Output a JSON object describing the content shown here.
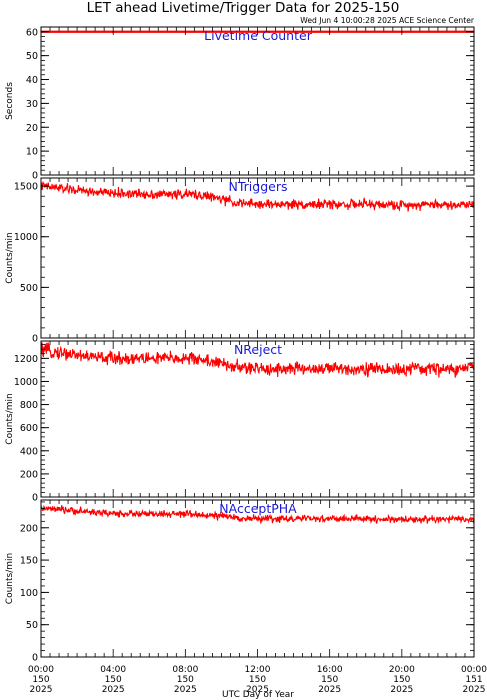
{
  "title": "LET ahead Livetime/Trigger Data for 2025-150",
  "subtitle": "Wed Jun  4 10:00:28 2025 ACE Science Center",
  "xlabel": "UTC Day of Year",
  "colors": {
    "data": "#ff0000",
    "panel_label": "#1a1ad6",
    "axes": "#000000"
  },
  "x_ticks": [
    {
      "hour": 0,
      "time": "00:00",
      "doy": "150",
      "year": "2025"
    },
    {
      "hour": 4,
      "time": "04:00",
      "doy": "150",
      "year": "2025"
    },
    {
      "hour": 8,
      "time": "08:00",
      "doy": "150",
      "year": "2025"
    },
    {
      "hour": 12,
      "time": "12:00",
      "doy": "150",
      "year": "2025"
    },
    {
      "hour": 16,
      "time": "16:00",
      "doy": "150",
      "year": "2025"
    },
    {
      "hour": 20,
      "time": "20:00",
      "doy": "150",
      "year": "2025"
    },
    {
      "hour": 24,
      "time": "00:00",
      "doy": "151",
      "year": "2025"
    }
  ],
  "chart_data": [
    {
      "type": "line",
      "label": "Livetime Counter",
      "ylabel": "Seconds",
      "ylim": [
        0,
        62
      ],
      "yticks": [
        0,
        10,
        20,
        30,
        40,
        50,
        60
      ],
      "xlim": [
        0,
        24
      ],
      "series": [
        {
          "x": [
            0,
            24
          ],
          "values": [
            60,
            60
          ]
        }
      ]
    },
    {
      "type": "line",
      "label": "NTriggers",
      "ylabel": "Counts/min",
      "ylim": [
        0,
        1580
      ],
      "yticks": [
        0,
        500,
        1000,
        1500
      ],
      "xlim": [
        0,
        24
      ],
      "series": [
        {
          "x": [
            0,
            1,
            2,
            3,
            4,
            5,
            6,
            7,
            8,
            9,
            10,
            11,
            12,
            13,
            14,
            15,
            16,
            17,
            18,
            19,
            20,
            21,
            22,
            23,
            24
          ],
          "values": [
            1500,
            1480,
            1460,
            1440,
            1430,
            1425,
            1420,
            1420,
            1420,
            1410,
            1370,
            1330,
            1320,
            1320,
            1320,
            1320,
            1320,
            1320,
            1320,
            1315,
            1310,
            1320,
            1320,
            1310,
            1330
          ],
          "spread": 70
        }
      ]
    },
    {
      "type": "line",
      "label": "NReject",
      "ylabel": "Counts/min",
      "ylim": [
        0,
        1350
      ],
      "yticks": [
        0,
        200,
        400,
        600,
        800,
        1000,
        1200
      ],
      "xlim": [
        0,
        24
      ],
      "series": [
        {
          "x": [
            0,
            1,
            2,
            3,
            4,
            5,
            6,
            7,
            8,
            9,
            10,
            11,
            12,
            13,
            14,
            15,
            16,
            17,
            18,
            19,
            20,
            21,
            22,
            23,
            24
          ],
          "values": [
            1270,
            1250,
            1230,
            1210,
            1200,
            1200,
            1200,
            1200,
            1200,
            1190,
            1150,
            1120,
            1110,
            1110,
            1110,
            1110,
            1110,
            1110,
            1110,
            1105,
            1100,
            1110,
            1110,
            1100,
            1130
          ],
          "spread": 85
        }
      ]
    },
    {
      "type": "line",
      "label": "NAcceptPHA",
      "ylabel": "Counts/min",
      "ylim": [
        0,
        243
      ],
      "yticks": [
        0,
        50,
        100,
        150,
        200
      ],
      "xlim": [
        0,
        24
      ],
      "series": [
        {
          "x": [
            0,
            1,
            2,
            3,
            4,
            5,
            6,
            7,
            8,
            9,
            10,
            11,
            12,
            13,
            14,
            15,
            16,
            17,
            18,
            19,
            20,
            21,
            22,
            23,
            24
          ],
          "values": [
            230,
            228,
            226,
            224,
            222,
            222,
            221,
            221,
            221,
            220,
            218,
            215,
            214,
            214,
            214,
            214,
            214,
            214,
            214,
            213,
            213,
            213,
            213,
            213,
            213
          ],
          "spread": 8
        }
      ]
    }
  ]
}
